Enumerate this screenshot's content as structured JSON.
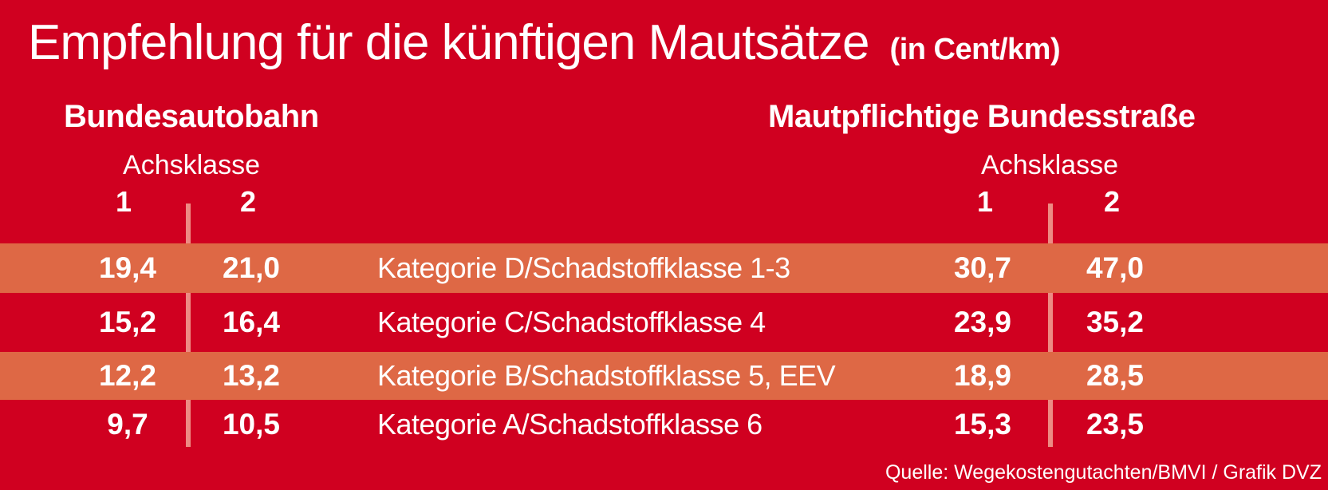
{
  "title": {
    "main": "Empfehlung für die künftigen Mautsätze",
    "unit": "(in Cent/km)"
  },
  "sections": {
    "left": {
      "title": "Bundesautobahn",
      "axle_label": "Achsklasse",
      "axle_class_1": "1",
      "axle_class_2": "2"
    },
    "right": {
      "title": "Mautpflichtige Bundesstraße",
      "axle_label": "Achsklasse",
      "axle_class_1": "1",
      "axle_class_2": "2"
    }
  },
  "table": {
    "rows": [
      {
        "autobahn_axle1": "19,4",
        "autobahn_axle2": "21,0",
        "category": "Kategorie D/Schadstoffklasse 1-3",
        "bundesstrasse_axle1": "30,7",
        "bundesstrasse_axle2": "47,0"
      },
      {
        "autobahn_axle1": "15,2",
        "autobahn_axle2": "16,4",
        "category": "Kategorie C/Schadstoffklasse 4",
        "bundesstrasse_axle1": "23,9",
        "bundesstrasse_axle2": "35,2"
      },
      {
        "autobahn_axle1": "12,2",
        "autobahn_axle2": "13,2",
        "category": "Kategorie B/Schadstoffklasse 5, EEV",
        "bundesstrasse_axle1": "18,9",
        "bundesstrasse_axle2": "28,5"
      },
      {
        "autobahn_axle1": "9,7",
        "autobahn_axle2": "10,5",
        "category": "Kategorie A/Schadstoffklasse 6",
        "bundesstrasse_axle1": "15,3",
        "bundesstrasse_axle2": "23,5"
      }
    ]
  },
  "source": "Quelle: Wegekostengutachten/BMVI / Grafik DVZ",
  "colors": {
    "background": "#d00020",
    "band": "#de6845",
    "divider": "rgba(255,224,194,0.62)",
    "text": "#ffffff"
  },
  "chart_data": {
    "type": "table",
    "title": "Empfehlung für die künftigen Mautsätze (in Cent/km)",
    "unit": "Cent/km",
    "column_groups": [
      "Bundesautobahn",
      "Mautpflichtige Bundesstraße"
    ],
    "columns": [
      "Bundesautobahn Achsklasse 1",
      "Bundesautobahn Achsklasse 2",
      "Kategorie",
      "Mautpflichtige Bundesstraße Achsklasse 1",
      "Mautpflichtige Bundesstraße Achsklasse 2"
    ],
    "rows": [
      [
        19.4,
        21.0,
        "Kategorie D/Schadstoffklasse 1-3",
        30.7,
        47.0
      ],
      [
        15.2,
        16.4,
        "Kategorie C/Schadstoffklasse 4",
        23.9,
        35.2
      ],
      [
        12.2,
        13.2,
        "Kategorie B/Schadstoffklasse 5, EEV",
        18.9,
        28.5
      ],
      [
        9.7,
        10.5,
        "Kategorie A/Schadstoffklasse 6",
        15.3,
        23.5
      ]
    ],
    "source": "Quelle: Wegekostengutachten/BMVI / Grafik DVZ"
  }
}
